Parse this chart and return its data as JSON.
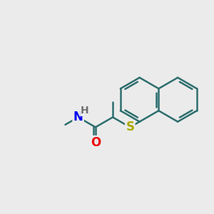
{
  "bg_color": "#EBEBEB",
  "bond_color": "#2D6E6E",
  "bond_width": 1.8,
  "N_color": "#0000EE",
  "O_color": "#EE0000",
  "S_color": "#AAAA00",
  "H_color": "#707070",
  "font_size": 12,
  "fig_size": [
    3.0,
    3.0
  ],
  "dpi": 100,
  "xlim": [
    0,
    10
  ],
  "ylim": [
    0,
    10
  ]
}
